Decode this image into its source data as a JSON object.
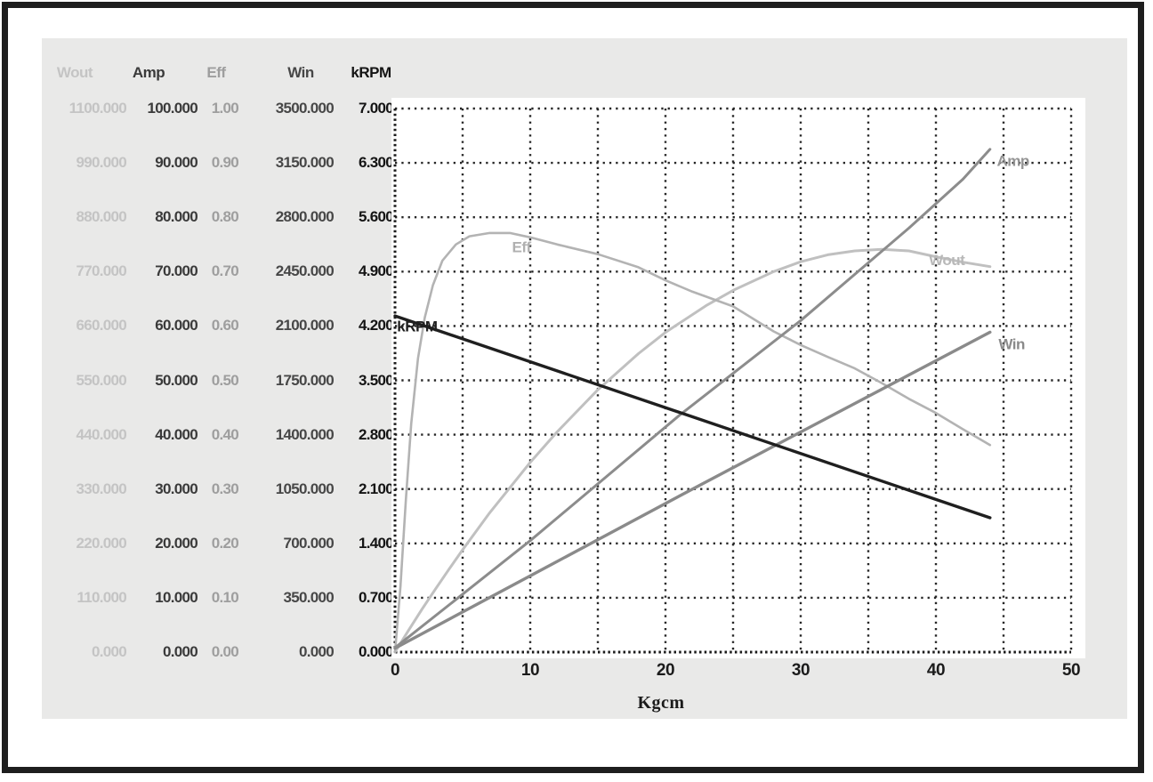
{
  "panel": {
    "background": "#e9e9e8",
    "frame_color": "#1e1e1e"
  },
  "table": {
    "headers": [
      {
        "label": "Wout",
        "color": "#c4c4c4"
      },
      {
        "label": "Amp",
        "color": "#3a3a3a"
      },
      {
        "label": "Eff",
        "color": "#9e9e9e"
      },
      {
        "label": "Win",
        "color": "#474747"
      },
      {
        "label": "kRPM",
        "color": "#141414"
      }
    ],
    "rows": [
      [
        "1100.000",
        "100.000",
        "1.00",
        "3500.000",
        "7.000"
      ],
      [
        "990.000",
        "90.000",
        "0.90",
        "3150.000",
        "6.300"
      ],
      [
        "880.000",
        "80.000",
        "0.80",
        "2800.000",
        "5.600"
      ],
      [
        "770.000",
        "70.000",
        "0.70",
        "2450.000",
        "4.900"
      ],
      [
        "660.000",
        "60.000",
        "0.60",
        "2100.000",
        "4.200"
      ],
      [
        "550.000",
        "50.000",
        "0.50",
        "1750.000",
        "3.500"
      ],
      [
        "440.000",
        "40.000",
        "0.40",
        "1400.000",
        "2.800"
      ],
      [
        "330.000",
        "30.000",
        "0.30",
        "1050.000",
        "2.100"
      ],
      [
        "220.000",
        "20.000",
        "0.20",
        "700.000",
        "1.400"
      ],
      [
        "110.000",
        "10.000",
        "0.10",
        "350.000",
        "0.700"
      ],
      [
        "0.000",
        "0.000",
        "0.00",
        "0.000",
        "0.000"
      ]
    ]
  },
  "chart_data": {
    "type": "line",
    "xlabel": "Kgcm",
    "x_range": [
      0,
      50
    ],
    "x_tick_labels": [
      "0",
      "10",
      "20",
      "30",
      "40",
      "50"
    ],
    "x_gridline_step": 5,
    "display_units_range": [
      0,
      7
    ],
    "display_gridline_step": 0.7,
    "grid": "dotted",
    "grid_color": "#262626",
    "axis_color": "#1a1a1a",
    "plot_background": "#ffffff",
    "y_axes": [
      {
        "name": "Wout",
        "max": 1100,
        "tick_step": 110
      },
      {
        "name": "Amp",
        "max": 100,
        "tick_step": 10
      },
      {
        "name": "Eff",
        "max": 1.0,
        "tick_step": 0.1
      },
      {
        "name": "Win",
        "max": 3500,
        "tick_step": 350
      },
      {
        "name": "kRPM",
        "max": 7.0,
        "tick_step": 0.7
      }
    ],
    "series": [
      {
        "name": "Wout",
        "axis_max": 1100,
        "color": "#c0c0c0",
        "stroke_width": 3,
        "label": "Wout",
        "label_at": [
          40.8,
          5.05
        ],
        "label_anchor": "middle",
        "label_color": "#b8b8b8",
        "points": [
          [
            0,
            0
          ],
          [
            1,
            44
          ],
          [
            2,
            87
          ],
          [
            3,
            128
          ],
          [
            4,
            168
          ],
          [
            5,
            207
          ],
          [
            7,
            282
          ],
          [
            10,
            384
          ],
          [
            12,
            446
          ],
          [
            15,
            531
          ],
          [
            18,
            604
          ],
          [
            20,
            647
          ],
          [
            23,
            701
          ],
          [
            25,
            732
          ],
          [
            28,
            770
          ],
          [
            30,
            790
          ],
          [
            32,
            804
          ],
          [
            34,
            812
          ],
          [
            36,
            815
          ],
          [
            38,
            812
          ],
          [
            40,
            800
          ],
          [
            42,
            789
          ],
          [
            44,
            780
          ]
        ]
      },
      {
        "name": "Eff",
        "axis_max": 1.0,
        "color": "#b3b3b3",
        "stroke_width": 2.6,
        "label": "Eff",
        "label_at": [
          9.35,
          5.22
        ],
        "label_anchor": "middle",
        "label_color": "#b0b0b0",
        "points": [
          [
            0,
            0
          ],
          [
            0.4,
            0.12
          ],
          [
            0.8,
            0.28
          ],
          [
            1.2,
            0.42
          ],
          [
            1.7,
            0.54
          ],
          [
            2.2,
            0.615
          ],
          [
            2.8,
            0.675
          ],
          [
            3.5,
            0.72
          ],
          [
            4.5,
            0.75
          ],
          [
            5.5,
            0.765
          ],
          [
            7,
            0.771
          ],
          [
            8.5,
            0.771
          ],
          [
            10,
            0.763
          ],
          [
            12,
            0.75
          ],
          [
            15,
            0.732
          ],
          [
            18,
            0.708
          ],
          [
            20,
            0.684
          ],
          [
            22,
            0.663
          ],
          [
            25,
            0.636
          ],
          [
            28,
            0.59
          ],
          [
            30,
            0.565
          ],
          [
            32,
            0.543
          ],
          [
            34,
            0.522
          ],
          [
            36,
            0.495
          ],
          [
            38,
            0.466
          ],
          [
            40,
            0.44
          ],
          [
            42,
            0.41
          ],
          [
            44,
            0.381
          ]
        ]
      },
      {
        "name": "Win",
        "axis_max": 3500,
        "color": "#8a8a8a",
        "stroke_width": 3.4,
        "label": "Win",
        "label_at": [
          45.6,
          3.97
        ],
        "label_anchor": "middle",
        "label_color": "#8a8a8a",
        "points": [
          [
            0,
            25
          ],
          [
            22,
            1050
          ],
          [
            44,
            2060
          ]
        ]
      },
      {
        "name": "Amp",
        "axis_max": 100,
        "color": "#8c8c8c",
        "stroke_width": 3,
        "label": "Amp",
        "label_at": [
          45.7,
          6.33
        ],
        "label_anchor": "middle",
        "label_color": "#949494",
        "points": [
          [
            0,
            0.8
          ],
          [
            10,
            20.5
          ],
          [
            21,
            43.5
          ],
          [
            30,
            61
          ],
          [
            38,
            78
          ],
          [
            42,
            87
          ],
          [
            44,
            92.5
          ]
        ]
      },
      {
        "name": "kRPM",
        "axis_max": 7.0,
        "color": "#1f1f1f",
        "stroke_width": 3.4,
        "label": "kRPM",
        "label_at": [
          0.15,
          4.2
        ],
        "label_anchor": "start",
        "label_color": "#1f1f1f",
        "points": [
          [
            0,
            4.33
          ],
          [
            22,
            3.03
          ],
          [
            44,
            1.73
          ]
        ]
      }
    ]
  }
}
